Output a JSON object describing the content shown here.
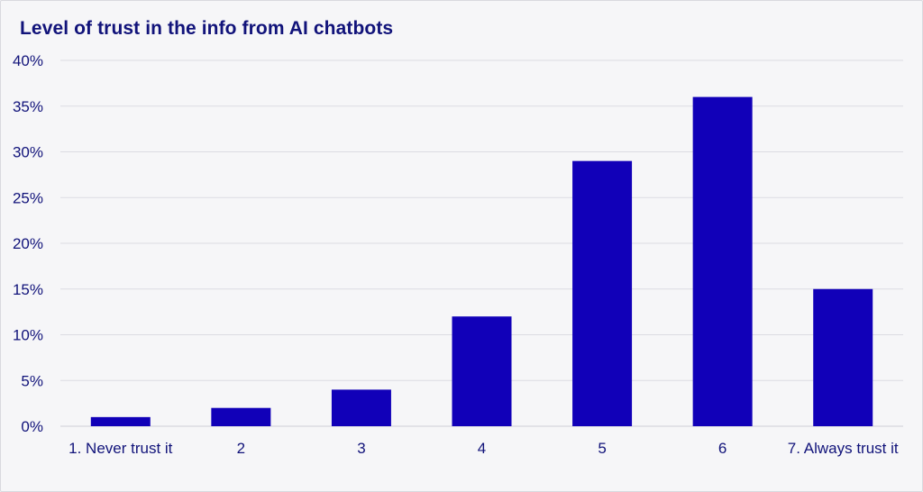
{
  "chart_data": {
    "type": "bar",
    "title": "Level of trust in the info from AI chatbots",
    "xlabel": "",
    "ylabel": "",
    "categories": [
      "1. Never trust it",
      "2",
      "3",
      "4",
      "5",
      "6",
      "7. Always trust it"
    ],
    "values": [
      1,
      2,
      4,
      12,
      29,
      36,
      15
    ],
    "unit": "%",
    "ylim": [
      0,
      40
    ],
    "yticks": [
      0,
      5,
      10,
      15,
      20,
      25,
      30,
      35,
      40
    ],
    "ytick_labels": [
      "0%",
      "5%",
      "10%",
      "15%",
      "20%",
      "25%",
      "30%",
      "35%",
      "40%"
    ],
    "grid": true,
    "legend": "none",
    "bar_color": "#1100b8"
  }
}
